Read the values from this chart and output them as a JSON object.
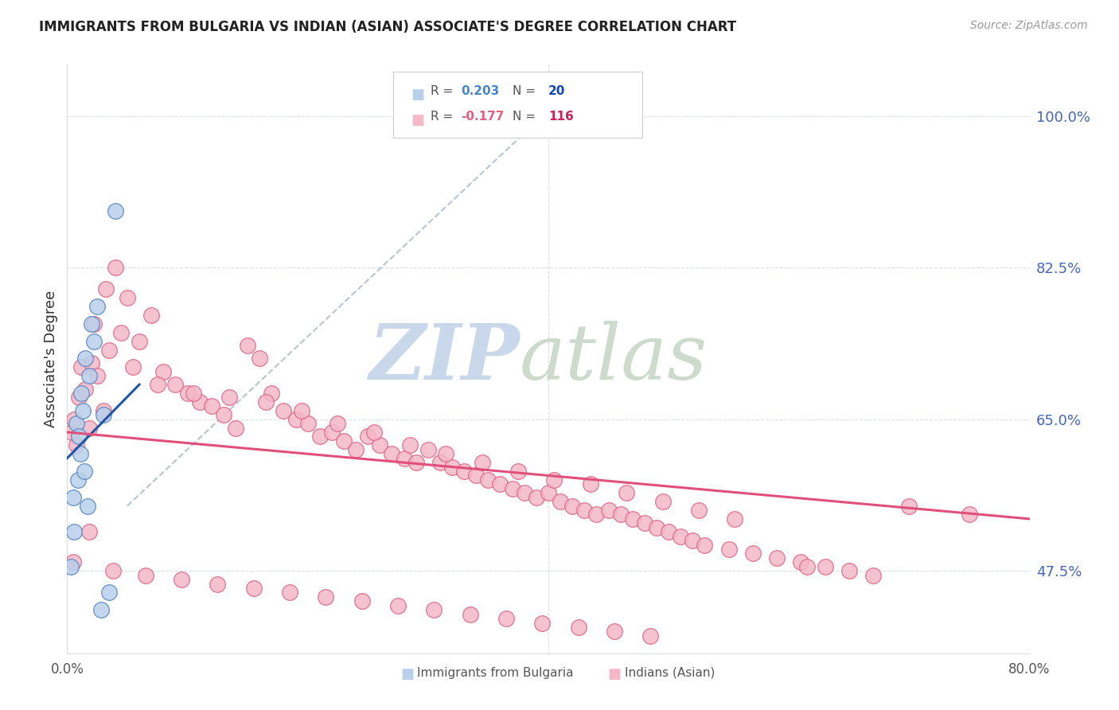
{
  "title": "IMMIGRANTS FROM BULGARIA VS INDIAN (ASIAN) ASSOCIATE'S DEGREE CORRELATION CHART",
  "source": "Source: ZipAtlas.com",
  "ylabel": "Associate's Degree",
  "yticks": [
    47.5,
    65.0,
    82.5,
    100.0
  ],
  "ytick_labels": [
    "47.5%",
    "65.0%",
    "82.5%",
    "100.0%"
  ],
  "xlim": [
    0.0,
    80.0
  ],
  "ylim": [
    38.0,
    106.0
  ],
  "blue_color": "#b8d0ea",
  "pink_color": "#f4b8c8",
  "blue_edge_color": "#5080c0",
  "pink_edge_color": "#e06080",
  "blue_line_color": "#2255aa",
  "pink_line_color": "#e0507a",
  "dashed_line_color": "#b8c4d0",
  "grid_color": "#d8dfe8",
  "title_color": "#222222",
  "axis_label_color": "#333333",
  "right_tick_color": "#4466bb",
  "legend_r_color1": "#4488cc",
  "legend_n_color1": "#1144bb",
  "legend_r_color2": "#e06080",
  "legend_n_color2": "#cc2255",
  "bg_color": "#ffffff",
  "scatter_blue_x": [
    0.5,
    0.8,
    1.0,
    1.2,
    1.5,
    1.8,
    2.0,
    2.2,
    2.5,
    3.0,
    0.3,
    0.6,
    0.9,
    1.1,
    1.4,
    1.7,
    2.8,
    3.5,
    4.0,
    1.3
  ],
  "scatter_blue_y": [
    56.0,
    64.5,
    63.0,
    68.0,
    72.0,
    70.0,
    76.0,
    74.0,
    78.0,
    65.5,
    48.0,
    52.0,
    58.0,
    61.0,
    59.0,
    55.0,
    43.0,
    45.0,
    89.0,
    66.0
  ],
  "scatter_pink_x": [
    0.4,
    0.6,
    0.8,
    1.0,
    1.2,
    1.5,
    1.8,
    2.0,
    2.5,
    3.0,
    3.5,
    4.0,
    4.5,
    5.0,
    6.0,
    7.0,
    8.0,
    9.0,
    10.0,
    11.0,
    12.0,
    13.0,
    14.0,
    15.0,
    16.0,
    17.0,
    18.0,
    19.0,
    20.0,
    21.0,
    22.0,
    23.0,
    24.0,
    25.0,
    26.0,
    27.0,
    28.0,
    29.0,
    30.0,
    31.0,
    32.0,
    33.0,
    34.0,
    35.0,
    36.0,
    37.0,
    38.0,
    39.0,
    40.0,
    41.0,
    42.0,
    43.0,
    44.0,
    45.0,
    46.0,
    47.0,
    48.0,
    49.0,
    50.0,
    51.0,
    52.0,
    53.0,
    55.0,
    57.0,
    59.0,
    61.0,
    63.0,
    65.0,
    67.0,
    70.0,
    2.2,
    3.2,
    5.5,
    7.5,
    10.5,
    13.5,
    16.5,
    19.5,
    22.5,
    25.5,
    28.5,
    31.5,
    34.5,
    37.5,
    40.5,
    43.5,
    46.5,
    49.5,
    52.5,
    55.5,
    0.5,
    1.8,
    3.8,
    6.5,
    9.5,
    12.5,
    15.5,
    18.5,
    21.5,
    24.5,
    27.5,
    30.5,
    33.5,
    36.5,
    39.5,
    42.5,
    45.5,
    48.5,
    75.0,
    61.5
  ],
  "scatter_pink_y": [
    63.5,
    65.0,
    62.0,
    67.5,
    71.0,
    68.5,
    64.0,
    71.5,
    70.0,
    66.0,
    73.0,
    82.5,
    75.0,
    79.0,
    74.0,
    77.0,
    70.5,
    69.0,
    68.0,
    67.0,
    66.5,
    65.5,
    64.0,
    73.5,
    72.0,
    68.0,
    66.0,
    65.0,
    64.5,
    63.0,
    63.5,
    62.5,
    61.5,
    63.0,
    62.0,
    61.0,
    60.5,
    60.0,
    61.5,
    60.0,
    59.5,
    59.0,
    58.5,
    58.0,
    57.5,
    57.0,
    56.5,
    56.0,
    56.5,
    55.5,
    55.0,
    54.5,
    54.0,
    54.5,
    54.0,
    53.5,
    53.0,
    52.5,
    52.0,
    51.5,
    51.0,
    50.5,
    50.0,
    49.5,
    49.0,
    48.5,
    48.0,
    47.5,
    47.0,
    55.0,
    76.0,
    80.0,
    71.0,
    69.0,
    68.0,
    67.5,
    67.0,
    66.0,
    64.5,
    63.5,
    62.0,
    61.0,
    60.0,
    59.0,
    58.0,
    57.5,
    56.5,
    55.5,
    54.5,
    53.5,
    48.5,
    52.0,
    47.5,
    47.0,
    46.5,
    46.0,
    45.5,
    45.0,
    44.5,
    44.0,
    43.5,
    43.0,
    42.5,
    42.0,
    41.5,
    41.0,
    40.5,
    40.0,
    54.0,
    48.0
  ],
  "blue_trend_x0": 0.0,
  "blue_trend_y0": 60.5,
  "blue_trend_x1": 6.0,
  "blue_trend_y1": 69.0,
  "pink_trend_x0": 0.0,
  "pink_trend_y0": 63.5,
  "pink_trend_x1": 80.0,
  "pink_trend_y1": 53.5,
  "dash_x0": 5.0,
  "dash_y0": 55.0,
  "dash_x1": 38.0,
  "dash_y1": 98.0
}
